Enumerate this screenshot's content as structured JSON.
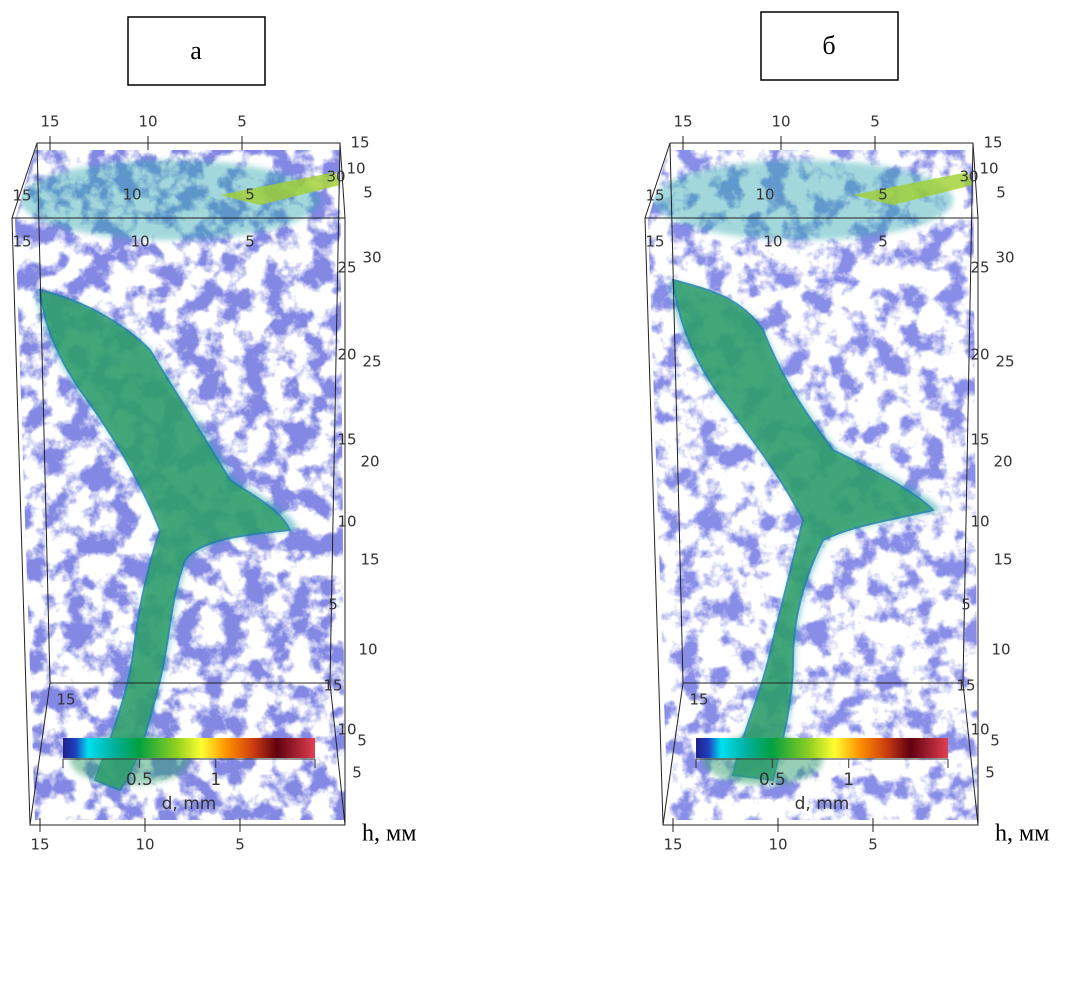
{
  "panels": [
    {
      "label": "а",
      "axis_top": [
        "15",
        "10",
        "5"
      ],
      "axis_face": [
        "15",
        "10",
        "5",
        "15",
        "10",
        "5",
        "15"
      ],
      "axis_right": [
        "15",
        "10",
        "30",
        "5",
        "30",
        "25",
        "25",
        "20",
        "15",
        "20",
        "10",
        "15",
        "5",
        "10",
        "15",
        "10",
        "5",
        "5"
      ],
      "axis_bottom": [
        "15",
        "10",
        "5"
      ],
      "axis_title": "h, мм",
      "colorbar": {
        "title": "d, mm",
        "clim": [
          0,
          1.65
        ],
        "ticks": [
          0.5,
          1
        ]
      }
    },
    {
      "label": "б",
      "axis_top": [
        "15",
        "10",
        "5"
      ],
      "axis_face": [
        "15",
        "10",
        "5",
        "15",
        "10",
        "5",
        "15"
      ],
      "axis_right": [
        "15",
        "10",
        "30",
        "5",
        "30",
        "25",
        "25",
        "20",
        "15",
        "20",
        "10",
        "15",
        "5",
        "10",
        "15",
        "10",
        "5",
        "5"
      ],
      "axis_bottom": [
        "15",
        "10",
        "5"
      ],
      "axis_title": "h, мм",
      "colorbar": {
        "title": "d, mm",
        "clim": [
          0,
          1.65
        ],
        "ticks": [
          0.5,
          1
        ]
      }
    }
  ]
}
